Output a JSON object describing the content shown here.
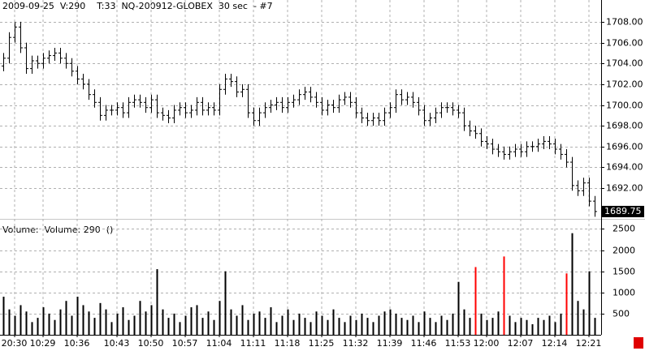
{
  "chart_data": {
    "type": "ohlc",
    "title": "2009-09-25  V:290    T:33  NQ-200912-GLOBEX  30 sec  - #7",
    "volume_title": "Volume:  Volume: 290  ()",
    "categories": [
      null,
      null,
      "20:30",
      null,
      null,
      null,
      null,
      "10:29",
      null,
      null,
      null,
      null,
      null,
      "10:36",
      null,
      null,
      null,
      null,
      null,
      null,
      "10:43",
      null,
      null,
      null,
      null,
      null,
      "10:50",
      null,
      null,
      null,
      null,
      null,
      "10:57",
      null,
      null,
      null,
      null,
      null,
      "11:04",
      null,
      null,
      null,
      null,
      null,
      "11:11",
      null,
      null,
      null,
      null,
      null,
      "11:18",
      null,
      null,
      null,
      null,
      null,
      "11:25",
      null,
      null,
      null,
      null,
      null,
      "11:32",
      null,
      null,
      null,
      null,
      null,
      "11:39",
      null,
      null,
      null,
      null,
      null,
      "11:46",
      null,
      null,
      null,
      null,
      null,
      "11:53",
      null,
      null,
      null,
      null,
      "12:00",
      null,
      null,
      null,
      null,
      null,
      "12:07",
      null,
      null,
      null,
      null,
      null,
      "12:14",
      null,
      null,
      null,
      null,
      null,
      "12:21",
      null
    ],
    "open": [
      1703.75,
      1704.5,
      1706.5,
      1707.5,
      1705.5,
      1703.5,
      1704.25,
      1704,
      1704.5,
      1704.75,
      1705,
      1704.5,
      1704,
      1703.25,
      1702.5,
      1702,
      1701,
      1700.25,
      1699,
      1699.5,
      1699.5,
      1699.75,
      1699.25,
      1700.25,
      1700.5,
      1700.25,
      1699.75,
      1700.5,
      1699.25,
      1699,
      1698.75,
      1699.5,
      1699.75,
      1699.25,
      1699.5,
      1700.25,
      1699.5,
      1699.75,
      1699.5,
      1701.5,
      1702.5,
      1702.25,
      1701.25,
      1701.5,
      1699.25,
      1698.5,
      1699.25,
      1699.75,
      1700,
      1700.25,
      1699.75,
      1700.25,
      1700.5,
      1701,
      1701.25,
      1700.75,
      1700.25,
      1699.5,
      1700,
      1699.75,
      1700.5,
      1700.75,
      1700.25,
      1699.25,
      1698.75,
      1698.5,
      1698.75,
      1698.5,
      1699.25,
      1699.75,
      1701,
      1700.5,
      1700.75,
      1700.25,
      1699.5,
      1698.5,
      1698.75,
      1699.25,
      1699.75,
      1699.75,
      1699.5,
      1699.25,
      1698,
      1697.5,
      1697.25,
      1696.5,
      1696.25,
      1695.75,
      1695.5,
      1695.25,
      1695.5,
      1695.75,
      1695.5,
      1696,
      1696,
      1696.25,
      1696.5,
      1696.25,
      1695.75,
      1695.25,
      1694.5,
      1692.25,
      1691.75,
      1692.5,
      1690.75
    ],
    "high": [
      1705,
      1707,
      1708,
      1708,
      1706,
      1704.75,
      1704.75,
      1705,
      1705.25,
      1705.5,
      1705.5,
      1705,
      1704.5,
      1703.75,
      1703,
      1702.5,
      1701.5,
      1700.75,
      1700,
      1700,
      1700.25,
      1700.25,
      1700.75,
      1701,
      1701,
      1700.75,
      1701,
      1701,
      1699.75,
      1699.5,
      1700,
      1700.25,
      1700.25,
      1700,
      1700.75,
      1700.75,
      1700.25,
      1700.25,
      1702,
      1703,
      1703,
      1702.75,
      1702,
      1702,
      1699.75,
      1699.75,
      1700.25,
      1700.5,
      1700.75,
      1700.75,
      1700.75,
      1701,
      1701.5,
      1701.75,
      1701.75,
      1701.25,
      1700.75,
      1700.5,
      1700.5,
      1701,
      1701.25,
      1701.25,
      1700.75,
      1699.75,
      1699.25,
      1699.25,
      1699.25,
      1699.75,
      1700.25,
      1701.5,
      1701.5,
      1701.25,
      1701.25,
      1700.75,
      1700,
      1699.25,
      1699.75,
      1700.25,
      1700.25,
      1700.25,
      1700,
      1699.75,
      1698.5,
      1698,
      1697.75,
      1697,
      1696.75,
      1696.25,
      1696,
      1696,
      1696.25,
      1696.25,
      1696.5,
      1696.5,
      1696.75,
      1697,
      1697,
      1696.75,
      1696.25,
      1695.75,
      1695,
      1692.75,
      1693,
      1693,
      1691.25
    ],
    "low": [
      1703.25,
      1704,
      1706,
      1705,
      1703,
      1703,
      1703.5,
      1703.5,
      1704,
      1704.25,
      1704,
      1703.5,
      1702.75,
      1702,
      1701.5,
      1700.5,
      1699.75,
      1698.5,
      1698.5,
      1699,
      1699,
      1698.75,
      1698.75,
      1699.75,
      1699.75,
      1699.25,
      1699.25,
      1698.75,
      1698.5,
      1698.25,
      1698.25,
      1699,
      1698.75,
      1698.75,
      1699,
      1699,
      1699,
      1699,
      1699,
      1701,
      1701.75,
      1700.75,
      1700.75,
      1698.75,
      1698,
      1698,
      1698.75,
      1699.25,
      1699.5,
      1699.25,
      1699.25,
      1699.75,
      1700,
      1700.5,
      1700.25,
      1699.75,
      1699,
      1699,
      1699.25,
      1699.25,
      1700,
      1699.75,
      1698.75,
      1698.25,
      1698,
      1698,
      1698,
      1698,
      1698.75,
      1699.25,
      1700,
      1700,
      1699.75,
      1699,
      1698,
      1698,
      1698.25,
      1698.75,
      1699.25,
      1699,
      1698.75,
      1697.5,
      1697,
      1696.75,
      1696,
      1695.75,
      1695.25,
      1695,
      1694.75,
      1694.75,
      1695,
      1695,
      1695,
      1695.5,
      1695.5,
      1695.75,
      1695.75,
      1695.25,
      1694.75,
      1694,
      1691.75,
      1691.25,
      1691.25,
      1690.25,
      1689.25
    ],
    "close": [
      1704.5,
      1706.5,
      1707.5,
      1705.5,
      1703.5,
      1704.25,
      1704,
      1704.5,
      1704.75,
      1705,
      1704.5,
      1704,
      1703.25,
      1702.5,
      1702,
      1701,
      1700.25,
      1699,
      1699.5,
      1699.5,
      1699.75,
      1699.25,
      1700.25,
      1700.5,
      1700.25,
      1699.75,
      1700.5,
      1699.25,
      1699,
      1698.75,
      1699.5,
      1699.75,
      1699.25,
      1699.5,
      1700.25,
      1699.5,
      1699.75,
      1699.5,
      1701.5,
      1702.5,
      1702.25,
      1701.25,
      1701.5,
      1699.25,
      1698.5,
      1699.25,
      1699.75,
      1700,
      1700.25,
      1699.75,
      1700.25,
      1700.5,
      1701,
      1701.25,
      1700.75,
      1700.25,
      1699.5,
      1700,
      1699.75,
      1700.5,
      1700.75,
      1700.25,
      1699.25,
      1698.75,
      1698.5,
      1698.75,
      1698.5,
      1699.25,
      1699.75,
      1701,
      1700.5,
      1700.75,
      1700.25,
      1699.5,
      1698.5,
      1698.75,
      1699.25,
      1699.75,
      1699.75,
      1699.5,
      1699.25,
      1698,
      1697.5,
      1697.25,
      1696.5,
      1696.25,
      1695.75,
      1695.5,
      1695.25,
      1695.5,
      1695.75,
      1695.5,
      1696,
      1696,
      1696.25,
      1696.5,
      1696.25,
      1695.75,
      1695.25,
      1694.5,
      1692.25,
      1691.75,
      1692.5,
      1690.75,
      1689.75
    ],
    "volume": [
      900,
      600,
      450,
      700,
      550,
      300,
      400,
      650,
      500,
      350,
      600,
      800,
      450,
      900,
      700,
      550,
      400,
      750,
      600,
      300,
      500,
      650,
      350,
      450,
      800,
      550,
      700,
      1550,
      600,
      400,
      500,
      300,
      450,
      650,
      700,
      400,
      550,
      350,
      800,
      1500,
      600,
      450,
      700,
      350,
      500,
      550,
      400,
      650,
      300,
      450,
      600,
      350,
      500,
      400,
      300,
      550,
      450,
      350,
      600,
      400,
      300,
      450,
      350,
      500,
      400,
      300,
      450,
      550,
      600,
      500,
      400,
      350,
      450,
      300,
      550,
      400,
      300,
      450,
      350,
      500,
      1250,
      600,
      400,
      1600,
      500,
      350,
      400,
      550,
      1850,
      450,
      300,
      400,
      350,
      250,
      400,
      350,
      450,
      300,
      500,
      1450,
      2400,
      800,
      600,
      1500,
      400
    ],
    "price_ylim": [
      1689.2,
      1710.1
    ],
    "price_yticks": [
      {
        "value": 1692,
        "label": "1692.00"
      },
      {
        "value": 1694,
        "label": "1694.00"
      },
      {
        "value": 1696,
        "label": "1696.00"
      },
      {
        "value": 1698,
        "label": "1698.00"
      },
      {
        "value": 1700,
        "label": "1700.00"
      },
      {
        "value": 1702,
        "label": "1702.00"
      },
      {
        "value": 1704,
        "label": "1704.00"
      },
      {
        "value": 1706,
        "label": "1706.00"
      },
      {
        "value": 1708,
        "label": "1708.00"
      }
    ],
    "volume_ylim": [
      0,
      2700
    ],
    "volume_yticks": [
      500,
      1000,
      1500,
      2000,
      2500
    ],
    "grid": true,
    "bar_color": "#000000",
    "volume_color": "#000000",
    "highlight_color": "#ff0000",
    "highlighted": [
      83,
      88,
      99
    ]
  }
}
